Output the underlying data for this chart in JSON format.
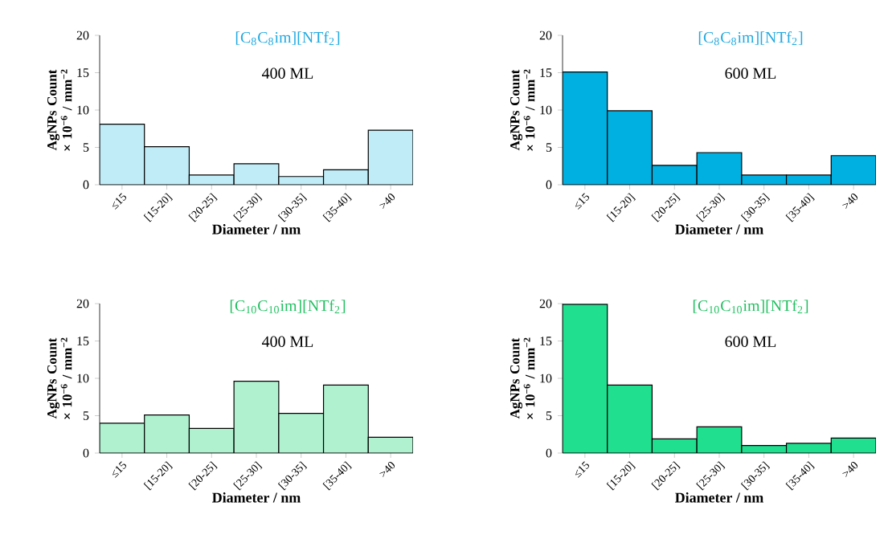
{
  "chart_data": [
    {
      "type": "bar",
      "title": "[C$_{8}$C$_{8}$im][NTf$_{2}$]",
      "subtitle": "400 ML",
      "xlabel": "Diameter / nm",
      "ylabel": "AgNPs Count × 10$^{−6}$ / mm$^{−2}$",
      "categories": [
        "≤15",
        "[15-20]",
        "[20-25]",
        "[25-30]",
        "[30-35]",
        "[35-40]",
        ">40"
      ],
      "values": [
        8.1,
        5.1,
        1.3,
        2.8,
        1.1,
        2.0,
        7.3
      ],
      "color": "#c0ecf7",
      "ylim": [
        0,
        20
      ],
      "yticks": [
        0,
        5,
        10,
        15,
        20
      ]
    },
    {
      "type": "bar",
      "title": "[C$_{8}$C$_{8}$im][NTf$_{2}$]",
      "subtitle": "600 ML",
      "xlabel": "Diameter / nm",
      "ylabel": "AgNPs Count × 10$^{−6}$ / mm$^{−2}$",
      "categories": [
        "≤15",
        "[15-20]",
        "[20-25]",
        "[25-30]",
        "[30-35]",
        "[35-40]",
        ">40"
      ],
      "values": [
        15.1,
        9.9,
        2.6,
        4.3,
        1.3,
        1.3,
        3.9
      ],
      "color": "#00b0e0",
      "ylim": [
        0,
        20
      ],
      "yticks": [
        0,
        5,
        10,
        15,
        20
      ]
    },
    {
      "type": "bar",
      "title": "[C$_{10}$C$_{10}$im][NTf$_{2}$]",
      "subtitle": "400 ML",
      "xlabel": "Diameter / nm",
      "ylabel": "AgNPs Count × 10$^{−6}$ / mm$^{−2}$",
      "categories": [
        "≤15",
        "[15-20]",
        "[20-25]",
        "[25-30]",
        "[30-35]",
        "[35-40]",
        ">40"
      ],
      "values": [
        4.0,
        5.1,
        3.3,
        9.6,
        5.3,
        9.1,
        2.1
      ],
      "color": "#b0f2d0",
      "ylim": [
        0,
        20
      ],
      "yticks": [
        0,
        5,
        10,
        15,
        20
      ]
    },
    {
      "type": "bar",
      "title": "[C$_{10}$C$_{10}$im][NTf$_{2}$]",
      "subtitle": "600 ML",
      "xlabel": "Diameter / nm",
      "ylabel": "AgNPs Count × 10$^{−6}$ / mm$^{−2}$",
      "categories": [
        "≤15",
        "[15-20]",
        "[20-25]",
        "[25-30]",
        "[30-35]",
        "[35-40]",
        ">40"
      ],
      "values": [
        19.9,
        9.1,
        1.9,
        3.5,
        1.0,
        1.3,
        2.0
      ],
      "color": "#20e090",
      "ylim": [
        0,
        20
      ],
      "yticks": [
        0,
        5,
        10,
        15,
        20
      ]
    }
  ]
}
